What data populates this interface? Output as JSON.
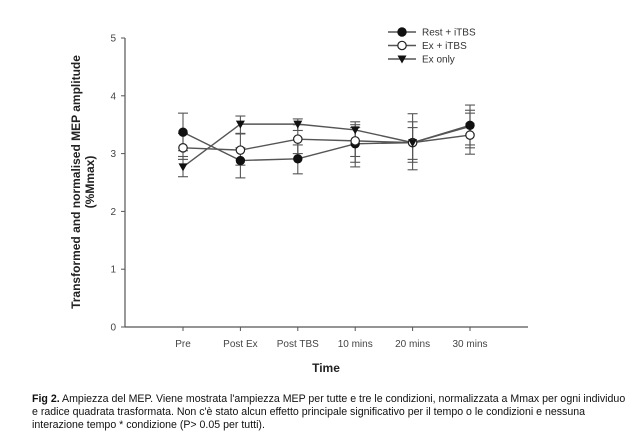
{
  "chart_data": {
    "type": "line",
    "title": "",
    "xlabel": "Time",
    "ylabel": "Transformed and normalised MEP amplitude",
    "ylabel_line2": "(%Mmax)",
    "categories": [
      "Pre",
      "Post Ex",
      "Post TBS",
      "10 mins",
      "20 mins",
      "30 mins"
    ],
    "ylim": [
      0,
      5
    ],
    "yticks": [
      "0",
      "1",
      "2",
      "3",
      "4",
      "5"
    ],
    "grid": false,
    "legend_position": "top-right",
    "series": [
      {
        "name": "Rest + iTBS",
        "marker": "filled-circle",
        "values": [
          3.37,
          2.88,
          2.91,
          3.17,
          3.19,
          3.49
        ],
        "error_upper": [
          3.7,
          3.1,
          3.15,
          3.45,
          3.69,
          3.84
        ],
        "error_lower": [
          3.05,
          2.58,
          2.65,
          2.85,
          2.72,
          3.1
        ]
      },
      {
        "name": "Ex + iTBS",
        "marker": "open-circle",
        "values": [
          3.1,
          3.06,
          3.25,
          3.22,
          3.19,
          3.32
        ],
        "error_upper": [
          3.35,
          3.34,
          3.5,
          3.5,
          3.55,
          3.7
        ],
        "error_lower": [
          2.9,
          2.8,
          3.0,
          2.95,
          2.85,
          2.99
        ]
      },
      {
        "name": "Ex only",
        "marker": "filled-triangle-down",
        "values": [
          2.77,
          3.51,
          3.51,
          3.41,
          3.19,
          3.47
        ],
        "error_upper": [
          2.95,
          3.65,
          3.6,
          3.55,
          3.45,
          3.75
        ],
        "error_lower": [
          2.6,
          3.35,
          3.4,
          2.77,
          2.9,
          3.15
        ]
      }
    ]
  },
  "caption": {
    "label": "Fig 2.",
    "text": " Ampiezza del MEP. Viene mostrata l'ampiezza MEP per tutte e tre le condizioni, normalizzata a Mmax per ogni individuo e radice quadrata trasformata. Non c'è stato alcun effetto principale significativo per il tempo o le condizioni e nessuna interazione tempo * condizione (P> 0.05 per tutti)."
  }
}
